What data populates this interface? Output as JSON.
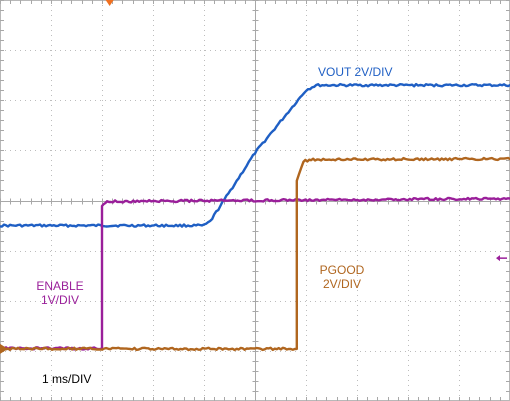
{
  "chart_data": {
    "type": "line",
    "title": "",
    "grid": true,
    "x_divisions": 10,
    "y_divisions": 8,
    "timebase_label": "1 ms/DIV",
    "series": [
      {
        "name": "VOUT",
        "label_lines": [
          "VOUT 2V/DIV"
        ],
        "color": "#1f5fc4",
        "points": [
          [
            0,
            3.5
          ],
          [
            4.0,
            3.5
          ],
          [
            4.12,
            3.58
          ],
          [
            5.0,
            4.95
          ],
          [
            6.0,
            6.2
          ],
          [
            6.2,
            6.3
          ],
          [
            10,
            6.3
          ]
        ]
      },
      {
        "name": "ENABLE",
        "label_lines": [
          "ENABLE",
          "1V/DIV"
        ],
        "color": "#9a1f9a",
        "points": [
          [
            0,
            1.05
          ],
          [
            2.0,
            1.05
          ],
          [
            2.0,
            3.9
          ],
          [
            2.1,
            3.98
          ],
          [
            10,
            4.04
          ]
        ]
      },
      {
        "name": "PGOOD",
        "label_lines": [
          "PGOOD",
          "2V/DIV"
        ],
        "color": "#b0661f",
        "points": [
          [
            0,
            1.04
          ],
          [
            5.82,
            1.04
          ],
          [
            5.82,
            4.4
          ],
          [
            5.95,
            4.78
          ],
          [
            6.1,
            4.82
          ],
          [
            10,
            4.83
          ]
        ]
      }
    ]
  }
}
